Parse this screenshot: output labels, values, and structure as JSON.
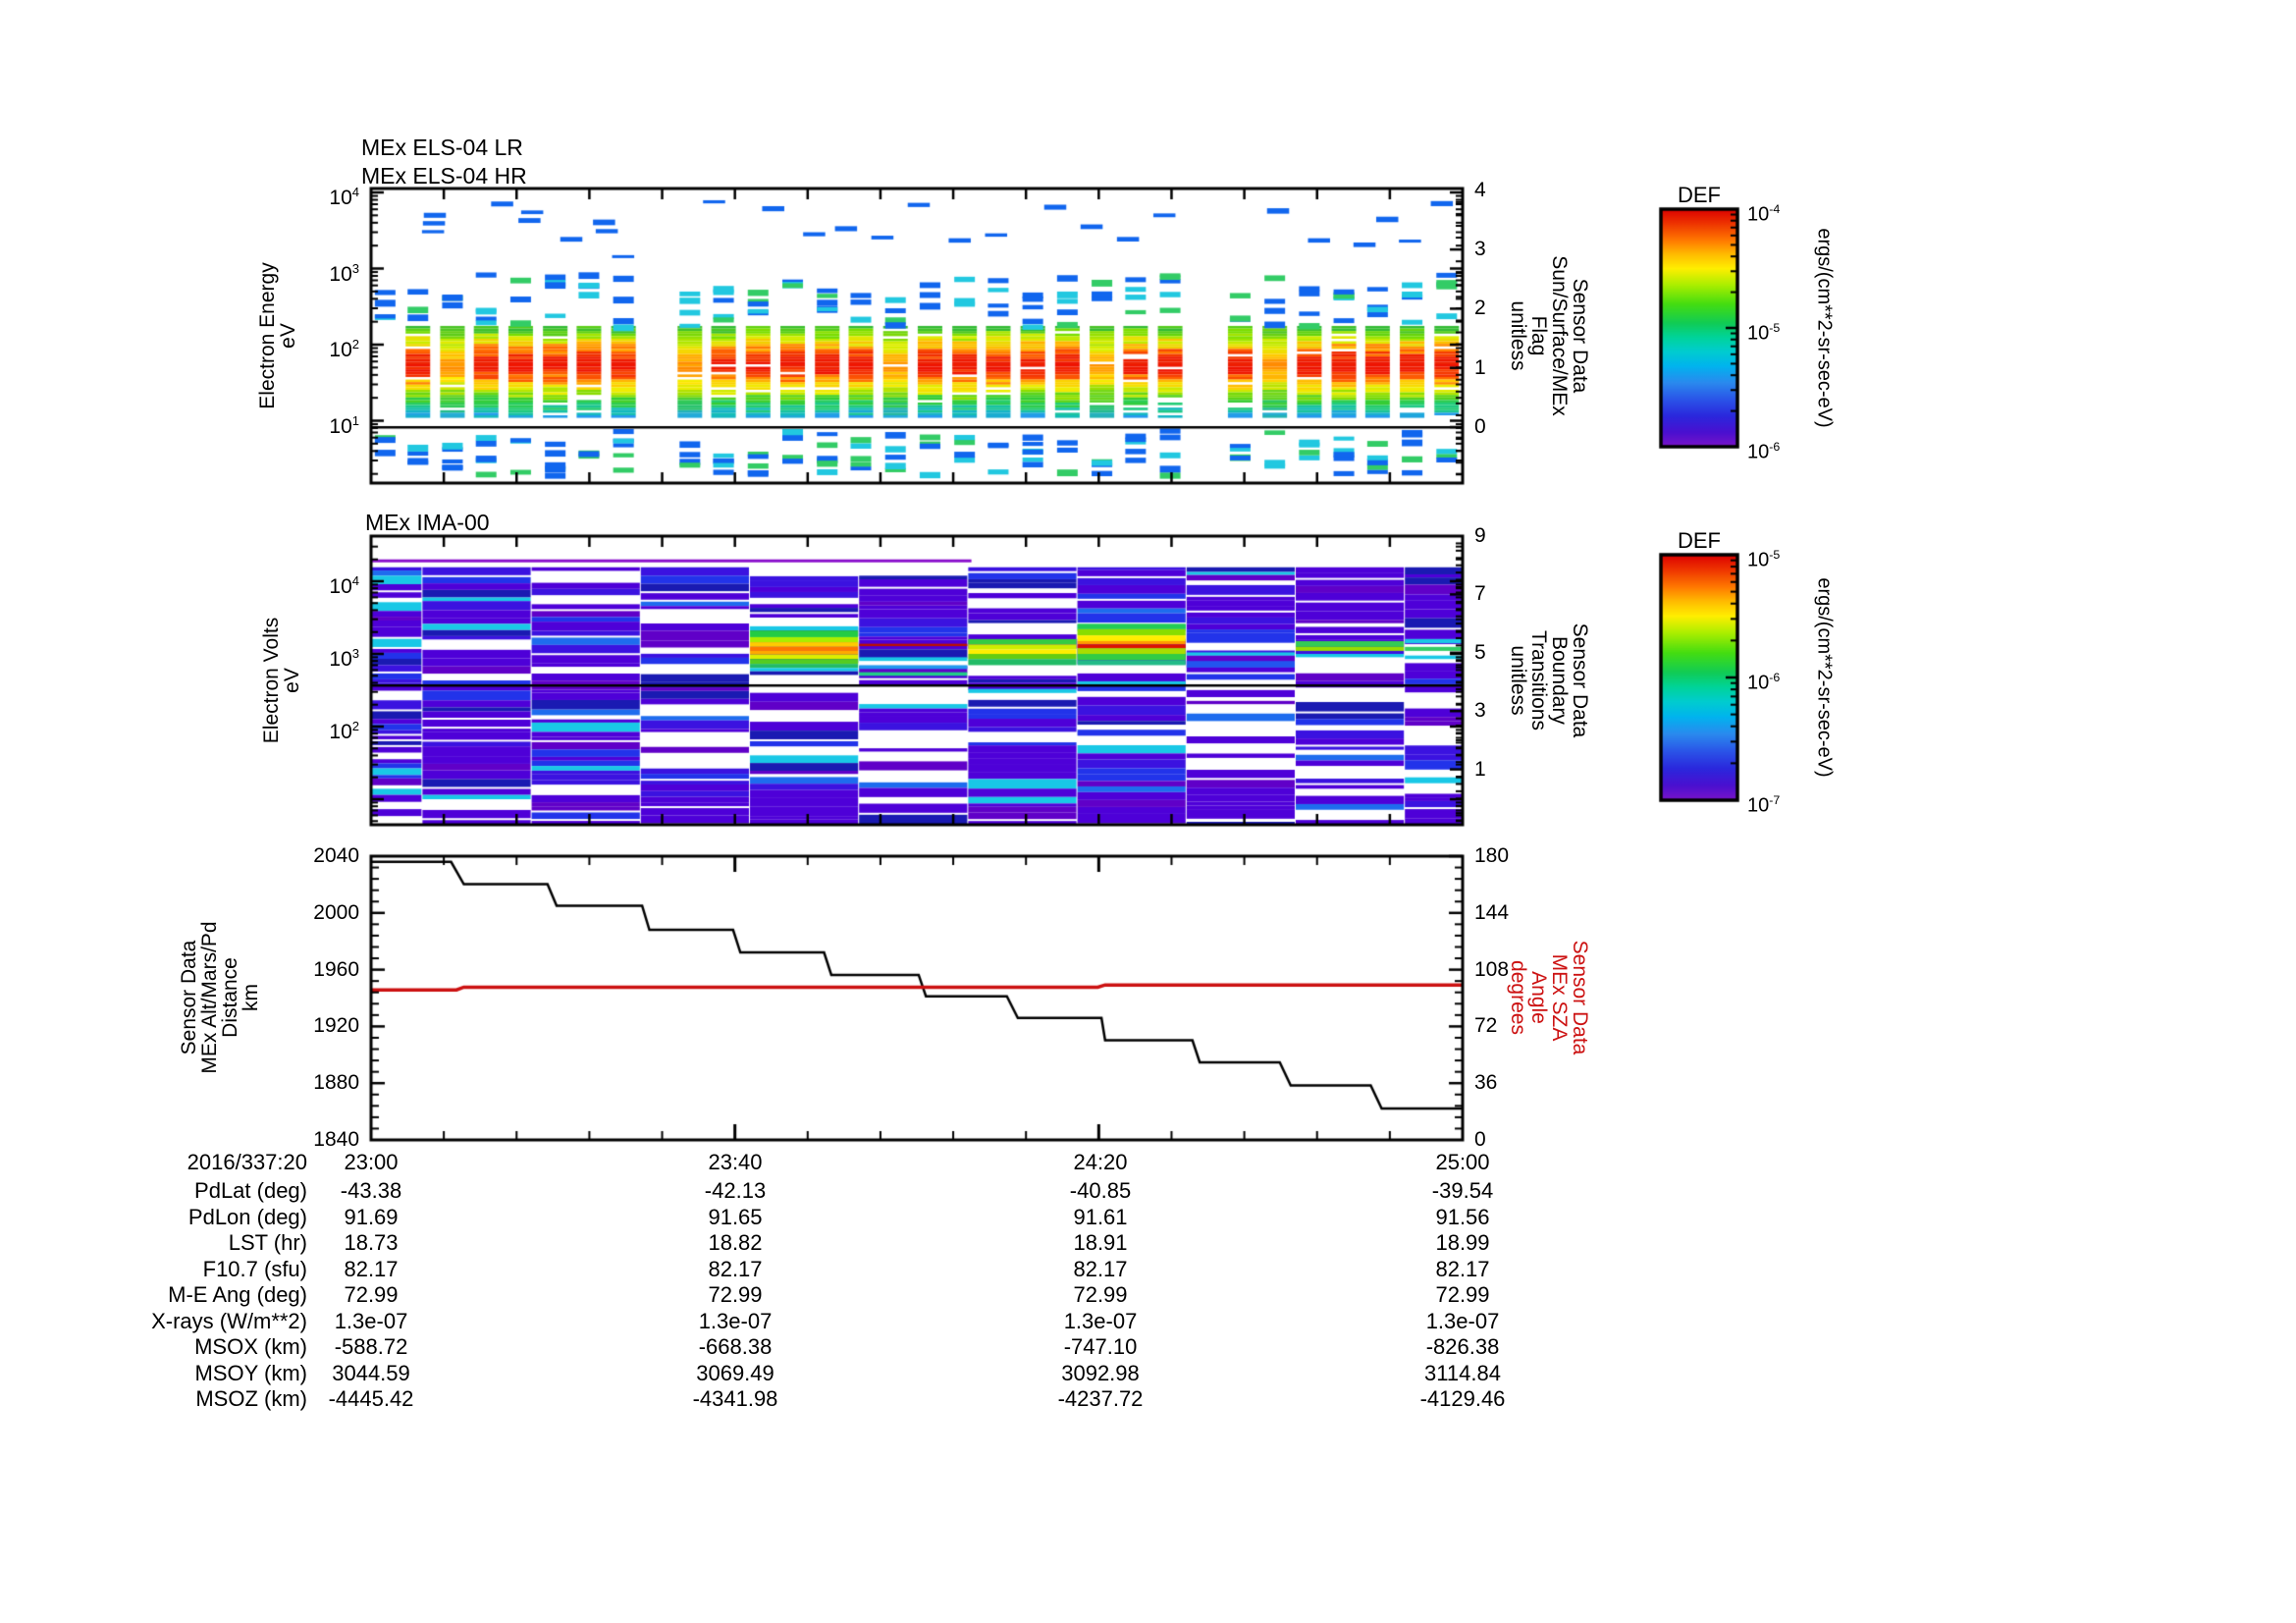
{
  "colors": {
    "background": "#ffffff",
    "axis": "#000000",
    "sza_red": "#cc1111",
    "colormap_gradient": [
      [
        0,
        "#dd0000"
      ],
      [
        0.06,
        "#ee3300"
      ],
      [
        0.13,
        "#ff7700"
      ],
      [
        0.19,
        "#ffbb00"
      ],
      [
        0.25,
        "#ffee00"
      ],
      [
        0.32,
        "#aaee00"
      ],
      [
        0.4,
        "#44dd11"
      ],
      [
        0.48,
        "#11cc55"
      ],
      [
        0.54,
        "#00d49a"
      ],
      [
        0.6,
        "#00ccd0"
      ],
      [
        0.66,
        "#00b4ee"
      ],
      [
        0.73,
        "#2a8aee"
      ],
      [
        0.8,
        "#2a55e8"
      ],
      [
        0.87,
        "#2a28dd"
      ],
      [
        0.94,
        "#4a10d0"
      ],
      [
        1,
        "#7a14c8"
      ]
    ]
  },
  "panels": {
    "els": {
      "titles": [
        "MEx ELS-04 LR",
        "MEx ELS-04 HR"
      ],
      "left_axis": {
        "label_lines": [
          "Electron Energy",
          "eV"
        ],
        "ticks": [
          "10^4",
          "10^3",
          "10^2",
          "10^1"
        ]
      },
      "right_axis": {
        "label_lines": [
          "Sensor Data",
          "Sun/Surface/MEx",
          "Flag",
          "unitless"
        ],
        "ticks": [
          "4",
          "3",
          "2",
          "1",
          "0"
        ]
      }
    },
    "ima": {
      "title": "MEx IMA-00",
      "left_axis": {
        "label_lines": [
          "Electron Volts",
          "eV"
        ],
        "ticks": [
          "10^4",
          "10^3",
          "10^2"
        ]
      },
      "right_axis": {
        "label_lines": [
          "Sensor Data",
          "Boundary",
          "Transitions",
          "unitless"
        ],
        "ticks": [
          "9",
          "7",
          "5",
          "3",
          "1"
        ]
      }
    },
    "aux": {
      "left_axis": {
        "label_lines": [
          "Sensor Data",
          "MEx Alt/Mars/Pd",
          "Distance",
          "km"
        ],
        "ticks": [
          "2040",
          "2000",
          "1960",
          "1920",
          "1880",
          "1840"
        ]
      },
      "right_axis": {
        "label_lines": [
          "Sensor Data",
          "MEx SZA",
          "Angle",
          "degrees"
        ],
        "ticks": [
          "180",
          "144",
          "108",
          "72",
          "36",
          "0"
        ]
      }
    }
  },
  "colorbars": [
    {
      "title": "DEF",
      "ticks": [
        "10^-4",
        "10^-5",
        "10^-6"
      ],
      "unit": "ergs/(cm**2-sr-sec-eV)"
    },
    {
      "title": "DEF",
      "ticks": [
        "10^-5",
        "10^-6",
        "10^-7"
      ],
      "unit": "ergs/(cm**2-sr-sec-eV)"
    }
  ],
  "table": {
    "date_label": "2016/337:20",
    "time_columns": [
      "23:00",
      "23:40",
      "24:20",
      "25:00"
    ],
    "rows": [
      {
        "label": "PdLat (deg)",
        "values": [
          "-43.38",
          "-42.13",
          "-40.85",
          "-39.54"
        ]
      },
      {
        "label": "PdLon (deg)",
        "values": [
          "91.69",
          "91.65",
          "91.61",
          "91.56"
        ]
      },
      {
        "label": "LST (hr)",
        "values": [
          "18.73",
          "18.82",
          "18.91",
          "18.99"
        ]
      },
      {
        "label": "F10.7 (sfu)",
        "values": [
          "82.17",
          "82.17",
          "82.17",
          "82.17"
        ]
      },
      {
        "label": "M-E Ang (deg)",
        "values": [
          "72.99",
          "72.99",
          "72.99",
          "72.99"
        ]
      },
      {
        "label": "X-rays (W/m**2)",
        "values": [
          "1.3e-07",
          "1.3e-07",
          "1.3e-07",
          "1.3e-07"
        ]
      },
      {
        "label": "MSOX (km)",
        "values": [
          "-588.72",
          "-668.38",
          "-747.10",
          "-826.38"
        ]
      },
      {
        "label": "MSOY (km)",
        "values": [
          "3044.59",
          "3069.49",
          "3092.98",
          "3114.84"
        ]
      },
      {
        "label": "MSOZ (km)",
        "values": [
          "-4445.42",
          "-4341.98",
          "-4237.72",
          "-4129.46"
        ]
      }
    ]
  },
  "chart_data": [
    {
      "type": "heatmap",
      "instrument": "MEx ELS-04 LR/HR",
      "x_time_range": [
        "23:00",
        "25:00"
      ],
      "x_minutes_range": [
        0,
        120
      ],
      "y_axis": "Electron Energy (eV), log scale",
      "y_range_eV": [
        1.6,
        11000
      ],
      "flag_axis_range": [
        -1,
        4
      ],
      "flag_line_value": 0,
      "unit": "ergs/(cm**2-sr-sec-eV)",
      "color_scale_range": [
        "1e-6",
        "1e-4"
      ],
      "burst_width_min": 2.7,
      "burst_core_eV": [
        11,
        176
      ],
      "burst_mid_dash_eV": [
        180,
        900
      ],
      "burst_low_dash_eV": [
        2,
        8
      ],
      "burst_start_minutes": [
        3.8,
        7.6,
        11.3,
        15.1,
        18.9,
        22.6,
        26.4,
        33.7,
        37.4,
        41.2,
        45.0,
        48.8,
        52.5,
        56.3,
        60.1,
        63.9,
        67.6,
        71.4,
        75.2,
        79.0,
        82.7,
        86.5,
        94.2,
        98.0,
        101.8,
        105.6,
        109.3,
        113.1,
        116.9
      ],
      "weak_burst_indexes": [
        1,
        7,
        13,
        19,
        23
      ],
      "partial_burst_minutes": [
        0.2
      ],
      "high_energy_dashes_min_eV": [
        [
          5.6,
          3200
        ],
        [
          5.7,
          4200
        ],
        [
          5.8,
          5400
        ],
        [
          13.2,
          7600
        ],
        [
          16.2,
          4600
        ],
        [
          16.5,
          5800
        ],
        [
          20.8,
          2600
        ],
        [
          24.4,
          4400
        ],
        [
          24.7,
          3300
        ],
        [
          26.5,
          1500
        ],
        [
          36.5,
          7900
        ],
        [
          43.0,
          6600
        ],
        [
          47.5,
          3000
        ],
        [
          51.0,
          3600
        ],
        [
          55.0,
          2700
        ],
        [
          59.0,
          7300
        ],
        [
          63.5,
          2500
        ],
        [
          67.5,
          2900
        ],
        [
          74.0,
          6900
        ],
        [
          78.0,
          3800
        ],
        [
          82.0,
          2600
        ],
        [
          86.0,
          5300
        ],
        [
          98.5,
          6200
        ],
        [
          103.0,
          2500
        ],
        [
          108.0,
          2200
        ],
        [
          110.5,
          4800
        ],
        [
          113.0,
          2400
        ],
        [
          116.5,
          7700
        ]
      ],
      "core_color_profile": [
        [
          0,
          "#33bb33"
        ],
        [
          0.07,
          "#77dd00"
        ],
        [
          0.14,
          "#ddee00"
        ],
        [
          0.2,
          "#ffbb00"
        ],
        [
          0.27,
          "#ff6600"
        ],
        [
          0.34,
          "#ee2200"
        ],
        [
          0.46,
          "#ee1100"
        ],
        [
          0.55,
          "#ff6600"
        ],
        [
          0.62,
          "#ffcc00"
        ],
        [
          0.68,
          "#eeee00"
        ],
        [
          0.74,
          "#88dd00"
        ],
        [
          0.8,
          "#33cc33"
        ],
        [
          0.87,
          "#22cc77"
        ],
        [
          0.93,
          "#11bbbb"
        ],
        [
          1,
          "#2299ee"
        ]
      ],
      "weak_core_profile": [
        [
          0,
          "#33bb33"
        ],
        [
          0.1,
          "#88dd00"
        ],
        [
          0.2,
          "#ddee00"
        ],
        [
          0.3,
          "#ffcc00"
        ],
        [
          0.42,
          "#ff8800"
        ],
        [
          0.5,
          "#ffaa00"
        ],
        [
          0.6,
          "#ffee00"
        ],
        [
          0.7,
          "#99dd00"
        ],
        [
          0.8,
          "#33cc44"
        ],
        [
          0.9,
          "#22bb88"
        ],
        [
          1,
          "#22aadd"
        ]
      ],
      "dash_colors": [
        "#1166ee",
        "#1166ee",
        "#22c8e0",
        "#33cc66"
      ]
    },
    {
      "type": "heatmap",
      "instrument": "MEx IMA-00",
      "x_minutes_range": [
        0,
        120
      ],
      "y_axis": "Electron Volts (eV), log scale",
      "y_range_eV": [
        4,
        36000
      ],
      "bt_axis_range": [
        -1,
        9
      ],
      "unit": "ergs/(cm**2-sr-sec-eV)",
      "color_scale_range": [
        "1e-7",
        "1e-5"
      ],
      "black_line_eV": 370,
      "violet_top_line": {
        "minutes": [
          0,
          66
        ],
        "eV": 20000,
        "color": "#8a10cc"
      },
      "column_minutes": [
        [
          0,
          5.6
        ],
        [
          5.6,
          17.6
        ],
        [
          17.6,
          29.6
        ],
        [
          29.6,
          41.6
        ],
        [
          41.6,
          53.6
        ],
        [
          53.6,
          65.6
        ],
        [
          65.6,
          77.6
        ],
        [
          77.6,
          89.6
        ],
        [
          89.6,
          101.6
        ],
        [
          101.6,
          113.6
        ],
        [
          113.6,
          120
        ]
      ],
      "palette_cdf": [
        [
          0.36,
          "#4e00d8"
        ],
        [
          0.54,
          "#3b12e0"
        ],
        [
          0.63,
          "#6000c8"
        ],
        [
          0.77,
          "#2233ea"
        ],
        [
          0.84,
          "#1e6cee"
        ],
        [
          0.9,
          "#19c8e6"
        ],
        [
          1,
          "#1a1ab2"
        ]
      ],
      "hot_bands": [
        {
          "minutes": [
            41.6,
            53.6
          ],
          "stripes": [
            [
              2400,
              2100,
              "#19c8e6"
            ],
            [
              2100,
              1700,
              "#22cc44"
            ],
            [
              1700,
              1450,
              "#aaee00"
            ],
            [
              1450,
              1250,
              "#ffcc00"
            ],
            [
              1250,
              1100,
              "#ff7700"
            ],
            [
              1100,
              980,
              "#ffaa00"
            ],
            [
              980,
              850,
              "#ddee00"
            ],
            [
              850,
              730,
              "#55cc22"
            ],
            [
              730,
              640,
              "#22bb66"
            ],
            [
              640,
              580,
              "#19c8e6"
            ]
          ]
        },
        {
          "minutes": [
            53.6,
            65.6
          ],
          "stripes": [
            [
              1380,
              1280,
              "#bb1100"
            ],
            [
              900,
              800,
              "#19c8e6"
            ],
            [
              700,
              620,
              "#2299ee"
            ],
            [
              560,
              500,
              "#22cc88"
            ]
          ]
        },
        {
          "minutes": [
            65.6,
            77.6
          ],
          "stripes": [
            [
              1600,
              1350,
              "#33cc44"
            ],
            [
              1350,
              1150,
              "#ccee00"
            ],
            [
              1150,
              1000,
              "#ffee00"
            ],
            [
              1000,
              850,
              "#66cc11"
            ],
            [
              850,
              700,
              "#22bb66"
            ],
            [
              330,
              290,
              "#19c8e6"
            ]
          ]
        },
        {
          "minutes": [
            77.6,
            89.6
          ],
          "stripes": [
            [
              2600,
              2200,
              "#22cc55"
            ],
            [
              2200,
              1800,
              "#88dd00"
            ],
            [
              1800,
              1500,
              "#ffee00"
            ],
            [
              1500,
              1350,
              "#ff9900"
            ],
            [
              1350,
              1200,
              "#dd1100"
            ],
            [
              1200,
              1000,
              "#aadd00"
            ],
            [
              1000,
              820,
              "#33cc44"
            ],
            [
              820,
              700,
              "#22bb88"
            ],
            [
              420,
              370,
              "#19c8e6"
            ]
          ]
        },
        {
          "minutes": [
            89.6,
            101.6
          ],
          "stripes": [
            [
              1050,
              950,
              "#19c8e6"
            ],
            [
              800,
              650,
              "#2255ee"
            ]
          ]
        },
        {
          "minutes": [
            101.6,
            113.6
          ],
          "stripes": [
            [
              1500,
              1250,
              "#33cc55"
            ],
            [
              1250,
              1100,
              "#99dd00"
            ],
            [
              1000,
              900,
              "#19c8e6"
            ]
          ]
        },
        {
          "minutes": [
            113.6,
            120
          ],
          "stripes": [
            [
              1600,
              1400,
              "#19c8e6"
            ],
            [
              1250,
              1100,
              "#33cc66"
            ],
            [
              950,
              850,
              "#19c8e6"
            ]
          ]
        }
      ]
    },
    {
      "type": "line",
      "x_time_range": [
        "23:00",
        "25:00"
      ],
      "x_tick_labels": [
        "23:00",
        "23:40",
        "24:20",
        "25:00"
      ],
      "x_minor_tick_minutes": 8,
      "left_axis": {
        "label": "Sensor Data MEx Alt/Mars/Pd Distance (km)",
        "ylim": [
          1840,
          2040
        ],
        "tick_step": 40
      },
      "right_axis": {
        "label": "Sensor Data MEx SZA Angle (degrees)",
        "ylim": [
          0,
          180
        ],
        "tick_step": 36
      },
      "series": [
        {
          "name": "MEx Alt/Mars/Pd Distance",
          "axis": "left",
          "color": "#000000",
          "plateaus": [
            [
              0,
              8.8,
              2036.0
            ],
            [
              10.2,
              19.4,
              2020.2
            ],
            [
              20.4,
              29.8,
              2005.1
            ],
            [
              30.6,
              39.8,
              1988.1
            ],
            [
              40.6,
              49.8,
              1972.1
            ],
            [
              50.6,
              60.2,
              1956.3
            ],
            [
              61.0,
              69.9,
              1941.2
            ],
            [
              71.1,
              80.3,
              1926.0
            ],
            [
              80.7,
              90.3,
              1910.2
            ],
            [
              91.1,
              99.9,
              1894.7
            ],
            [
              101.1,
              109.9,
              1878.4
            ],
            [
              111.1,
              120,
              1862.1
            ]
          ]
        },
        {
          "name": "MEx SZA Angle",
          "axis": "right",
          "color": "#cc1111",
          "plateaus": [
            [
              0,
              9.4,
              95.2
            ],
            [
              10.2,
              79.9,
              96.9
            ],
            [
              80.7,
              120,
              98.3
            ]
          ]
        }
      ]
    }
  ]
}
